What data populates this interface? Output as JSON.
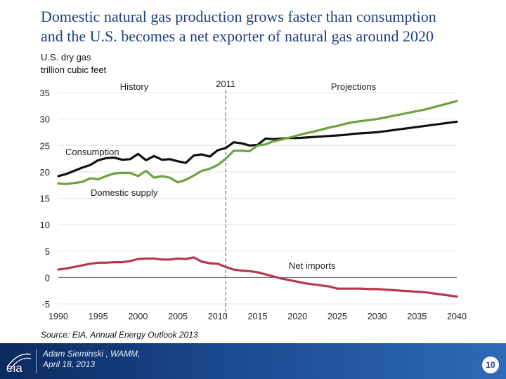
{
  "slide": {
    "title_line1": "Domestic natural gas production grows faster than consumption",
    "title_line2": "and the U.S. becomes a net exporter of natural gas around 2020",
    "source": "Source:  EIA, Annual Energy Outlook 2013",
    "presenter_name": "Adam Sieminski , WAMM,",
    "presenter_date": "April 18, 2013",
    "page_number": "10",
    "logo_text": "eia"
  },
  "colors": {
    "title": "#1f3f84",
    "consumption": "#111111",
    "domestic_supply": "#6ba33e",
    "net_imports": "#b8374a",
    "divider_line": "#7a95b8",
    "footer": "#1a4a8f"
  },
  "chart_data": {
    "type": "line",
    "ylabel_line1": "U.S. dry gas",
    "ylabel_line2": "trillion cubic feet",
    "ylim": [
      -5,
      35
    ],
    "y_ticks": [
      35,
      30,
      25,
      20,
      15,
      10,
      5,
      0,
      -5
    ],
    "xlim": [
      1990,
      2040
    ],
    "x_ticks": [
      1990,
      1995,
      2000,
      2005,
      2010,
      2015,
      2020,
      2025,
      2030,
      2035,
      2040
    ],
    "grid": true,
    "divider_year": 2011,
    "annotations": {
      "history": "History",
      "divider": "2011",
      "projections": "Projections"
    },
    "series": [
      {
        "name": "Consumption",
        "color": "#111111",
        "x": [
          1990,
          1991,
          1992,
          1993,
          1994,
          1995,
          1996,
          1997,
          1998,
          1999,
          2000,
          2001,
          2002,
          2003,
          2004,
          2005,
          2006,
          2007,
          2008,
          2009,
          2010,
          2011,
          2012,
          2013,
          2014,
          2015,
          2016,
          2017,
          2018,
          2019,
          2020,
          2021,
          2022,
          2023,
          2024,
          2025,
          2026,
          2027,
          2028,
          2029,
          2030,
          2031,
          2032,
          2033,
          2034,
          2035,
          2036,
          2037,
          2038,
          2039,
          2040
        ],
        "values": [
          19.2,
          19.6,
          20.2,
          20.8,
          21.3,
          22.2,
          22.6,
          22.7,
          22.3,
          22.4,
          23.4,
          22.2,
          23.0,
          22.3,
          22.4,
          22.0,
          21.7,
          23.1,
          23.3,
          22.9,
          24.1,
          24.5,
          25.6,
          25.4,
          25.0,
          25.1,
          26.3,
          26.2,
          26.3,
          26.4,
          26.4,
          26.5,
          26.6,
          26.7,
          26.8,
          26.9,
          27.0,
          27.2,
          27.3,
          27.4,
          27.5,
          27.7,
          27.9,
          28.1,
          28.3,
          28.5,
          28.7,
          28.9,
          29.1,
          29.3,
          29.5
        ]
      },
      {
        "name": "Domestic supply",
        "color": "#6ba33e",
        "x": [
          1990,
          1991,
          1992,
          1993,
          1994,
          1995,
          1996,
          1997,
          1998,
          1999,
          2000,
          2001,
          2002,
          2003,
          2004,
          2005,
          2006,
          2007,
          2008,
          2009,
          2010,
          2011,
          2012,
          2013,
          2014,
          2015,
          2016,
          2017,
          2018,
          2019,
          2020,
          2021,
          2022,
          2023,
          2024,
          2025,
          2026,
          2027,
          2028,
          2029,
          2030,
          2031,
          2032,
          2033,
          2034,
          2035,
          2036,
          2037,
          2038,
          2039,
          2040
        ],
        "values": [
          17.8,
          17.7,
          17.9,
          18.1,
          18.8,
          18.6,
          19.2,
          19.7,
          19.8,
          19.8,
          19.2,
          20.2,
          18.9,
          19.2,
          18.9,
          18.0,
          18.5,
          19.3,
          20.2,
          20.6,
          21.3,
          22.5,
          24.0,
          24.0,
          23.9,
          25.0,
          25.2,
          25.8,
          26.1,
          26.5,
          26.9,
          27.3,
          27.6,
          28.0,
          28.4,
          28.7,
          29.1,
          29.4,
          29.6,
          29.8,
          30.0,
          30.3,
          30.6,
          30.9,
          31.2,
          31.5,
          31.8,
          32.2,
          32.6,
          33.0,
          33.4
        ]
      },
      {
        "name": "Net imports",
        "color": "#b8374a",
        "x": [
          1990,
          1991,
          1992,
          1993,
          1994,
          1995,
          1996,
          1997,
          1998,
          1999,
          2000,
          2001,
          2002,
          2003,
          2004,
          2005,
          2006,
          2007,
          2008,
          2009,
          2010,
          2011,
          2012,
          2013,
          2014,
          2015,
          2016,
          2017,
          2018,
          2019,
          2020,
          2021,
          2022,
          2023,
          2024,
          2025,
          2026,
          2027,
          2028,
          2029,
          2030,
          2031,
          2032,
          2033,
          2034,
          2035,
          2036,
          2037,
          2038,
          2039,
          2040
        ],
        "values": [
          1.5,
          1.7,
          2.0,
          2.3,
          2.6,
          2.8,
          2.8,
          2.9,
          2.9,
          3.1,
          3.5,
          3.6,
          3.6,
          3.4,
          3.4,
          3.6,
          3.5,
          3.8,
          3.0,
          2.7,
          2.6,
          2.0,
          1.5,
          1.3,
          1.2,
          1.0,
          0.6,
          0.2,
          -0.2,
          -0.5,
          -0.8,
          -1.1,
          -1.3,
          -1.5,
          -1.7,
          -2.1,
          -2.1,
          -2.1,
          -2.1,
          -2.2,
          -2.2,
          -2.3,
          -2.4,
          -2.5,
          -2.6,
          -2.7,
          -2.8,
          -3.0,
          -3.2,
          -3.4,
          -3.6
        ]
      }
    ]
  }
}
